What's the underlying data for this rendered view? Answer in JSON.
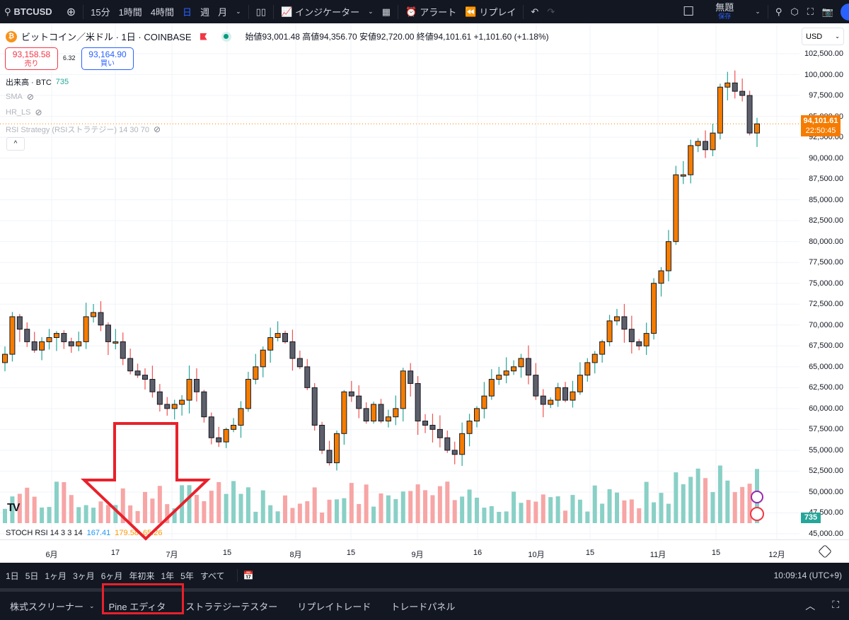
{
  "toolbar": {
    "symbol": "BTCUSD",
    "intervals": [
      "15分",
      "1時間",
      "4時間",
      "日",
      "週",
      "月"
    ],
    "active_interval": "日",
    "indicators_label": "インジケーター",
    "alert_label": "アラート",
    "replay_label": "リプレイ",
    "layout_name": "無題",
    "save_label": "保存"
  },
  "legend": {
    "title": "ビットコイン／米ドル · 1日 · COINBASE",
    "open_label": "始値",
    "open": "93,001.48",
    "high_label": "高値",
    "high": "94,356.70",
    "low_label": "安値",
    "low": "92,720.00",
    "close_label": "終値",
    "close": "94,101.61",
    "change": "+1,101.60 (+1.18%)",
    "sell_price": "93,158.58",
    "sell_label": "売り",
    "spread": "6.32",
    "buy_price": "93,164.90",
    "buy_label": "買い"
  },
  "indicators": {
    "volume_label": "出来高 · BTC",
    "volume_value": "735",
    "sma": "SMA",
    "hr_ls": "HR_LS",
    "rsi_strategy": "RSI Strategy (RSIストラテジー) 14 30 70",
    "stoch_label": "STOCH RSI 14 3 3 14",
    "stoch_k": "167.41",
    "stoch_d": "179.58",
    "stoch_3": "65.26"
  },
  "price_axis": {
    "currency": "USD",
    "ticks": [
      "102,500.00",
      "100,000.00",
      "97,500.00",
      "95,000.00",
      "92,500.00",
      "90,000.00",
      "87,500.00",
      "85,000.00",
      "82,500.00",
      "80,000.00",
      "77,500.00",
      "75,000.00",
      "72,500.00",
      "70,000.00",
      "67,500.00",
      "65,000.00",
      "62,500.00",
      "60,000.00",
      "57,500.00",
      "55,000.00",
      "52,500.00",
      "50,000.00",
      "47,500.00",
      "45,000.00"
    ],
    "last_price": "94,101.61",
    "countdown": "22:50:45",
    "volume_tag": "735"
  },
  "time_axis": {
    "labels": [
      {
        "t": "6月",
        "x": 73
      },
      {
        "t": "17",
        "x": 163
      },
      {
        "t": "7月",
        "x": 243
      },
      {
        "t": "15",
        "x": 321
      },
      {
        "t": "8月",
        "x": 418
      },
      {
        "t": "15",
        "x": 496
      },
      {
        "t": "9月",
        "x": 590
      },
      {
        "t": "16",
        "x": 675
      },
      {
        "t": "10月",
        "x": 758
      },
      {
        "t": "15",
        "x": 834
      },
      {
        "t": "11月",
        "x": 930
      },
      {
        "t": "15",
        "x": 1012
      },
      {
        "t": "12月",
        "x": 1098
      }
    ]
  },
  "range_bar": {
    "ranges": [
      "1日",
      "5日",
      "1ヶ月",
      "3ヶ月",
      "6ヶ月",
      "年初来",
      "1年",
      "5年",
      "すべて"
    ],
    "clock": "10:09:14 (UTC+9)"
  },
  "bottom_tabs": [
    "株式スクリーナー",
    "Pine エディタ",
    "ストラテジーテスター",
    "リプレイトレード",
    "トレードパネル"
  ],
  "colors": {
    "up_body": "#f57c00",
    "down_body": "#5d606b",
    "wick_up": "#26a69a",
    "wick_down": "#ef5350",
    "vol_up": "#89d0c6",
    "vol_down": "#f7a5a5",
    "annotation": "#e8212b"
  },
  "chart_data": {
    "type": "candlestick",
    "title": "ビットコイン／米ドル · 1日 · COINBASE",
    "ylim": [
      45000,
      102500
    ],
    "closes_approx": [
      66500,
      71000,
      69500,
      68000,
      67000,
      68000,
      68500,
      69000,
      68000,
      67500,
      68000,
      71000,
      71500,
      70000,
      68000,
      68000,
      66000,
      64500,
      64000,
      63500,
      62000,
      60500,
      60000,
      60500,
      61000,
      63500,
      62000,
      59000,
      56500,
      56000,
      57500,
      58000,
      60000,
      63500,
      65000,
      67000,
      68500,
      69000,
      68000,
      66000,
      65000,
      62500,
      58000,
      55000,
      53500,
      57000,
      62000,
      61500,
      60000,
      58500,
      60500,
      58500,
      59000,
      60000,
      64500,
      63000,
      58500,
      58000,
      57500,
      56500,
      55000,
      54500,
      57000,
      58500,
      60000,
      61500,
      63500,
      64000,
      64500,
      65000,
      66000,
      64000,
      61500,
      60500,
      61000,
      62500,
      61000,
      62000,
      64000,
      65500,
      66500,
      68000,
      70500,
      71000,
      69500,
      68000,
      67500,
      69000,
      75000,
      76500,
      80000,
      88000,
      88000,
      91500,
      92000,
      91000,
      93000,
      98500,
      99000,
      98000,
      97500,
      93000,
      94101
    ]
  }
}
